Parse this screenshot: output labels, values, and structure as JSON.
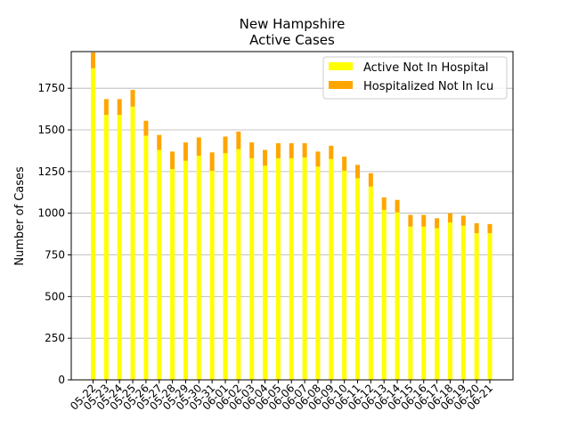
{
  "chart_data": {
    "type": "bar",
    "stacked": true,
    "title": "New Hampshire",
    "subtitle": "Active Cases",
    "xlabel": "",
    "ylabel": "Number of Cases",
    "ylim": [
      0,
      1970
    ],
    "yticks": [
      0,
      250,
      500,
      750,
      1000,
      1250,
      1500,
      1750
    ],
    "grid": "horizontal",
    "legend_position": "top-right",
    "categories": [
      "05-22",
      "05-23",
      "05-24",
      "05-25",
      "05-26",
      "05-27",
      "05-28",
      "05-29",
      "05-30",
      "05-31",
      "06-01",
      "06-02",
      "06-03",
      "06-04",
      "06-05",
      "06-06",
      "06-07",
      "06-08",
      "06-09",
      "06-10",
      "06-11",
      "06-12",
      "06-13",
      "06-14",
      "06-15",
      "06-16",
      "06-17",
      "06-18",
      "06-19",
      "06-20",
      "06-21"
    ],
    "series": [
      {
        "name": "Active Not In Hospital",
        "color": "#ffff00",
        "values": [
          1870,
          1590,
          1590,
          1640,
          1465,
          1380,
          1265,
          1315,
          1345,
          1255,
          1360,
          1385,
          1330,
          1285,
          1330,
          1330,
          1335,
          1280,
          1325,
          1255,
          1210,
          1160,
          1020,
          1005,
          920,
          920,
          910,
          945,
          925,
          880,
          880
        ]
      },
      {
        "name": "Hospitalized Not In Icu",
        "color": "#ffa500",
        "values": [
          95,
          95,
          95,
          100,
          90,
          90,
          105,
          110,
          110,
          110,
          100,
          105,
          95,
          95,
          90,
          90,
          85,
          90,
          80,
          85,
          80,
          80,
          75,
          75,
          70,
          70,
          60,
          55,
          60,
          60,
          55
        ]
      }
    ]
  }
}
